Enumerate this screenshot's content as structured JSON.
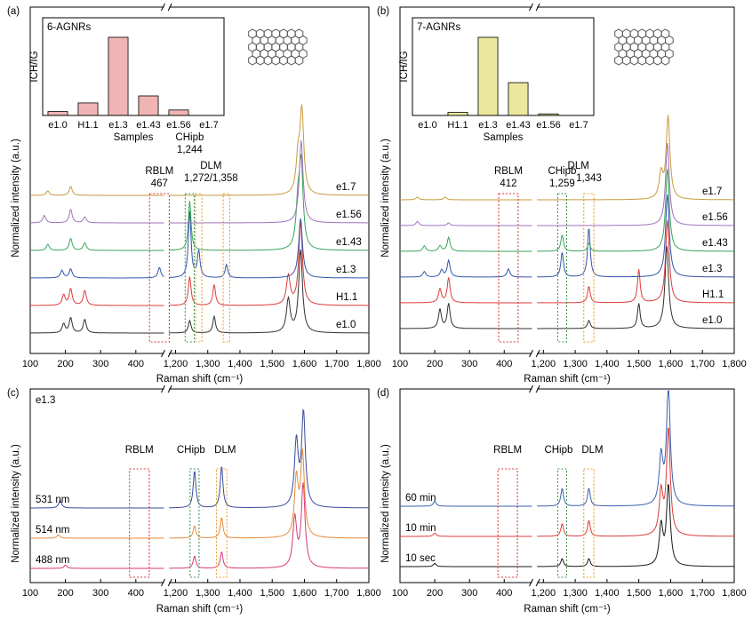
{
  "figure_colors": {
    "e1.0": "#303030",
    "H1.1": "#dd3b3b",
    "e1.3": "#3355aa",
    "e1.43": "#3aa35a",
    "e1.56": "#a072bd",
    "e1.7": "#c89a3c",
    "488 nm": "#d63a7a",
    "514 nm": "#e8893a",
    "531 nm": "#3a4b9c",
    "10 sec": "#1a1a1a",
    "10 min": "#dd3b3b",
    "60 min": "#3a5fb0",
    "rblm_box": "#d83a3a",
    "chipb_box": "#3a9a4a",
    "dlm_box": "#e8a030",
    "inset_a": "#e46a6a",
    "inset_b": "#d8d040"
  },
  "chart_data": [
    {
      "panel": "(a)",
      "type": "line",
      "xlabel": "Raman shift (cm⁻¹)",
      "ylabel": "Normalized intensity (a.u.)",
      "x_ticks_left": [
        "100",
        "200",
        "300",
        "400"
      ],
      "x_ticks_right": [
        "1,200",
        "1,300",
        "1,400",
        "1,500",
        "1,600",
        "1,700",
        "1,800"
      ],
      "xlim_left": [
        100,
        480
      ],
      "xlim_right": [
        1180,
        1800
      ],
      "series": [
        {
          "name": "e1.0",
          "peaks": [
            [
              195,
              0.3
            ],
            [
              215,
              0.5
            ],
            [
              255,
              0.45
            ],
            [
              1244,
              0.15
            ],
            [
              1320,
              0.2
            ],
            [
              1550,
              0.4
            ],
            [
              1588,
              1.0
            ]
          ]
        },
        {
          "name": "H1.1",
          "peaks": [
            [
              195,
              0.35
            ],
            [
              215,
              0.55
            ],
            [
              255,
              0.5
            ],
            [
              1244,
              0.35
            ],
            [
              1320,
              0.25
            ],
            [
              1550,
              0.35
            ],
            [
              1588,
              1.0
            ]
          ]
        },
        {
          "name": "e1.3",
          "peaks": [
            [
              190,
              0.25
            ],
            [
              215,
              0.3
            ],
            [
              467,
              0.35
            ],
            [
              1244,
              1.0
            ],
            [
              1272,
              0.4
            ],
            [
              1358,
              0.2
            ],
            [
              1588,
              0.9
            ]
          ]
        },
        {
          "name": "e1.43",
          "peaks": [
            [
              150,
              0.2
            ],
            [
              215,
              0.4
            ],
            [
              255,
              0.25
            ],
            [
              1244,
              0.6
            ],
            [
              1580,
              0.5
            ],
            [
              1590,
              1.0
            ]
          ]
        },
        {
          "name": "e1.56",
          "peaks": [
            [
              140,
              0.25
            ],
            [
              215,
              0.45
            ],
            [
              255,
              0.2
            ],
            [
              1590,
              1.0
            ]
          ]
        },
        {
          "name": "e1.7",
          "peaks": [
            [
              150,
              0.15
            ],
            [
              215,
              0.3
            ],
            [
              1580,
              0.4
            ],
            [
              1592,
              1.0
            ]
          ]
        }
      ],
      "annotations": [
        "RBLM",
        "467",
        "CHipb",
        "1,244",
        "DLM",
        "1,272/1,358"
      ],
      "inset": {
        "label": "6-AGNRs",
        "xlabel": "Samples",
        "ylabel": "ICH/IG",
        "categories": [
          "e1.0",
          "H1.1",
          "e1.3",
          "e1.43",
          "e1.56",
          "e1.7"
        ],
        "values": [
          0.05,
          0.16,
          1.0,
          0.25,
          0.07,
          0.0
        ]
      }
    },
    {
      "panel": "(b)",
      "type": "line",
      "xlabel": "Raman shift (cm⁻¹)",
      "ylabel": "Normalized intensity (a.u.)",
      "x_ticks_left": [
        "100",
        "200",
        "300",
        "400"
      ],
      "x_ticks_right": [
        "1,200",
        "1,300",
        "1,400",
        "1,500",
        "1,600",
        "1,700",
        "1,800"
      ],
      "xlim_left": [
        100,
        480
      ],
      "xlim_right": [
        1180,
        1800
      ],
      "series": [
        {
          "name": "e1.0",
          "peaks": [
            [
              215,
              0.7
            ],
            [
              240,
              0.9
            ],
            [
              1343,
              0.1
            ],
            [
              1500,
              0.3
            ],
            [
              1588,
              1.0
            ]
          ]
        },
        {
          "name": "H1.1",
          "peaks": [
            [
              215,
              0.5
            ],
            [
              240,
              0.9
            ],
            [
              1343,
              0.2
            ],
            [
              1500,
              0.4
            ],
            [
              1590,
              1.0
            ]
          ]
        },
        {
          "name": "e1.3",
          "peaks": [
            [
              170,
              0.2
            ],
            [
              220,
              0.25
            ],
            [
              240,
              0.6
            ],
            [
              412,
              0.3
            ],
            [
              1259,
              0.3
            ],
            [
              1343,
              0.6
            ],
            [
              1590,
              1.0
            ]
          ]
        },
        {
          "name": "e1.43",
          "peaks": [
            [
              170,
              0.2
            ],
            [
              215,
              0.2
            ],
            [
              240,
              0.5
            ],
            [
              1259,
              0.2
            ],
            [
              1343,
              0.1
            ],
            [
              1590,
              1.0
            ]
          ]
        },
        {
          "name": "e1.56",
          "peaks": [
            [
              150,
              0.15
            ],
            [
              240,
              0.1
            ],
            [
              1590,
              1.0
            ]
          ]
        },
        {
          "name": "e1.7",
          "peaks": [
            [
              150,
              0.1
            ],
            [
              230,
              0.1
            ],
            [
              1570,
              0.3
            ],
            [
              1592,
              1.0
            ]
          ]
        }
      ],
      "annotations": [
        "RBLM",
        "412",
        "CHipb",
        "1,259",
        "DLM",
        "1,343"
      ],
      "inset": {
        "label": "7-AGNRs",
        "xlabel": "Samples",
        "ylabel": "ICH/IG",
        "categories": [
          "e1.0",
          "H1.1",
          "e1.3",
          "e1.43",
          "e1.56",
          "e1.7"
        ],
        "values": [
          0.0,
          0.04,
          1.0,
          0.42,
          0.02,
          0.0
        ]
      }
    },
    {
      "panel": "(c)",
      "type": "line",
      "sample_label": "e1.3",
      "xlabel": "Raman shift (cm⁻¹)",
      "ylabel": "Normalized intensity (a.u.)",
      "x_ticks_left": [
        "100",
        "200",
        "300",
        "400"
      ],
      "x_ticks_right": [
        "1,200",
        "1,300",
        "1,400",
        "1,500",
        "1,600",
        "1,700",
        "1,800"
      ],
      "xlim_left": [
        100,
        480
      ],
      "xlim_right": [
        1180,
        1800
      ],
      "series": [
        {
          "name": "488 nm",
          "peaks": [
            [
              200,
              0.1
            ],
            [
              1259,
              0.15
            ],
            [
              1343,
              0.2
            ],
            [
              1570,
              0.6
            ],
            [
              1596,
              1.0
            ]
          ]
        },
        {
          "name": "514 nm",
          "peaks": [
            [
              180,
              0.1
            ],
            [
              1259,
              0.15
            ],
            [
              1343,
              0.25
            ],
            [
              1575,
              0.7
            ],
            [
              1594,
              1.0
            ]
          ]
        },
        {
          "name": "531 nm",
          "peaks": [
            [
              185,
              0.2
            ],
            [
              1259,
              0.4
            ],
            [
              1343,
              0.45
            ],
            [
              1575,
              0.7
            ],
            [
              1597,
              1.0
            ]
          ]
        }
      ],
      "annotations": [
        "RBLM",
        "CHipb",
        "DLM"
      ]
    },
    {
      "panel": "(d)",
      "type": "line",
      "xlabel": "Raman shift (cm⁻¹)",
      "ylabel": "Normalized intensity (a.u.)",
      "x_ticks_left": [
        "100",
        "200",
        "300",
        "400"
      ],
      "x_ticks_right": [
        "1,200",
        "1,300",
        "1,400",
        "1,500",
        "1,600",
        "1,700",
        "1,800"
      ],
      "xlim_left": [
        100,
        480
      ],
      "xlim_right": [
        1180,
        1800
      ],
      "series": [
        {
          "name": "10 sec",
          "peaks": [
            [
              200,
              0.1
            ],
            [
              1259,
              0.1
            ],
            [
              1343,
              0.1
            ],
            [
              1570,
              0.5
            ],
            [
              1593,
              1.0
            ]
          ]
        },
        {
          "name": "10 min",
          "peaks": [
            [
              200,
              0.08
            ],
            [
              1259,
              0.12
            ],
            [
              1343,
              0.15
            ],
            [
              1570,
              0.4
            ],
            [
              1593,
              1.0
            ]
          ]
        },
        {
          "name": "60 min",
          "peaks": [
            [
              200,
              0.1
            ],
            [
              1259,
              0.15
            ],
            [
              1343,
              0.15
            ],
            [
              1570,
              0.4
            ],
            [
              1593,
              1.0
            ]
          ]
        }
      ],
      "annotations": [
        "RBLM",
        "CHipb",
        "DLM"
      ]
    }
  ]
}
